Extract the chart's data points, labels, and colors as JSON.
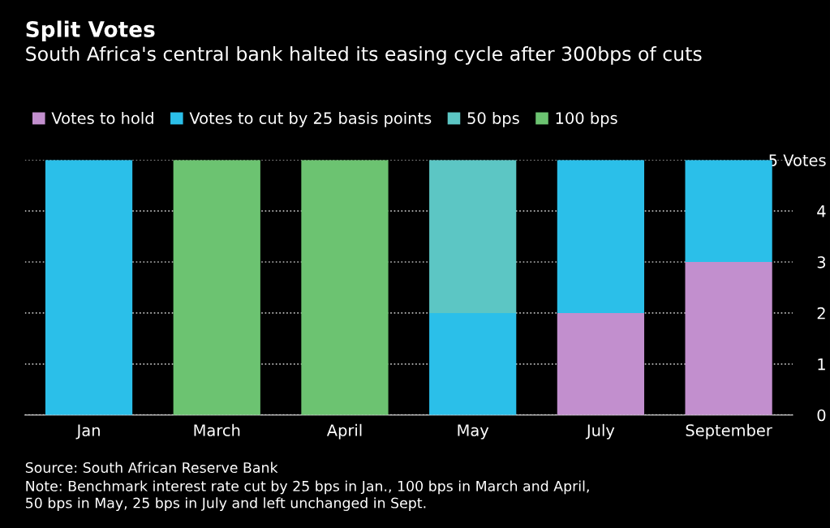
{
  "chart_data": {
    "type": "bar",
    "stacked": true,
    "title": "Split Votes",
    "subtitle": "South Africa's central bank halted its easing cycle after 300bps of cuts",
    "categories": [
      "Jan",
      "March",
      "April",
      "May",
      "July",
      "September"
    ],
    "series": [
      {
        "name": "Votes to hold",
        "color": "#c28fce",
        "values": [
          0,
          0,
          0,
          0,
          2,
          3
        ]
      },
      {
        "name": "Votes to cut by 25 basis points",
        "color": "#2bbfe9",
        "values": [
          5,
          0,
          0,
          2,
          3,
          2
        ]
      },
      {
        "name": "50 bps",
        "color": "#5cc6c4",
        "values": [
          0,
          0,
          0,
          3,
          0,
          0
        ]
      },
      {
        "name": "100 bps",
        "color": "#6cc371",
        "values": [
          0,
          5,
          5,
          0,
          0,
          0
        ]
      }
    ],
    "ylim": [
      0,
      5
    ],
    "yticks": [
      0,
      1,
      2,
      3,
      4,
      {
        "value": 5,
        "label": "5 Votes"
      }
    ],
    "grid": "y",
    "legend": "top left",
    "annotations": [
      "Source: South African Reserve Bank",
      "Note: Benchmark interest rate cut by 25 bps in Jan., 100 bps in March and April,\n50 bps in May, 25 bps in July and left unchanged in Sept."
    ]
  }
}
